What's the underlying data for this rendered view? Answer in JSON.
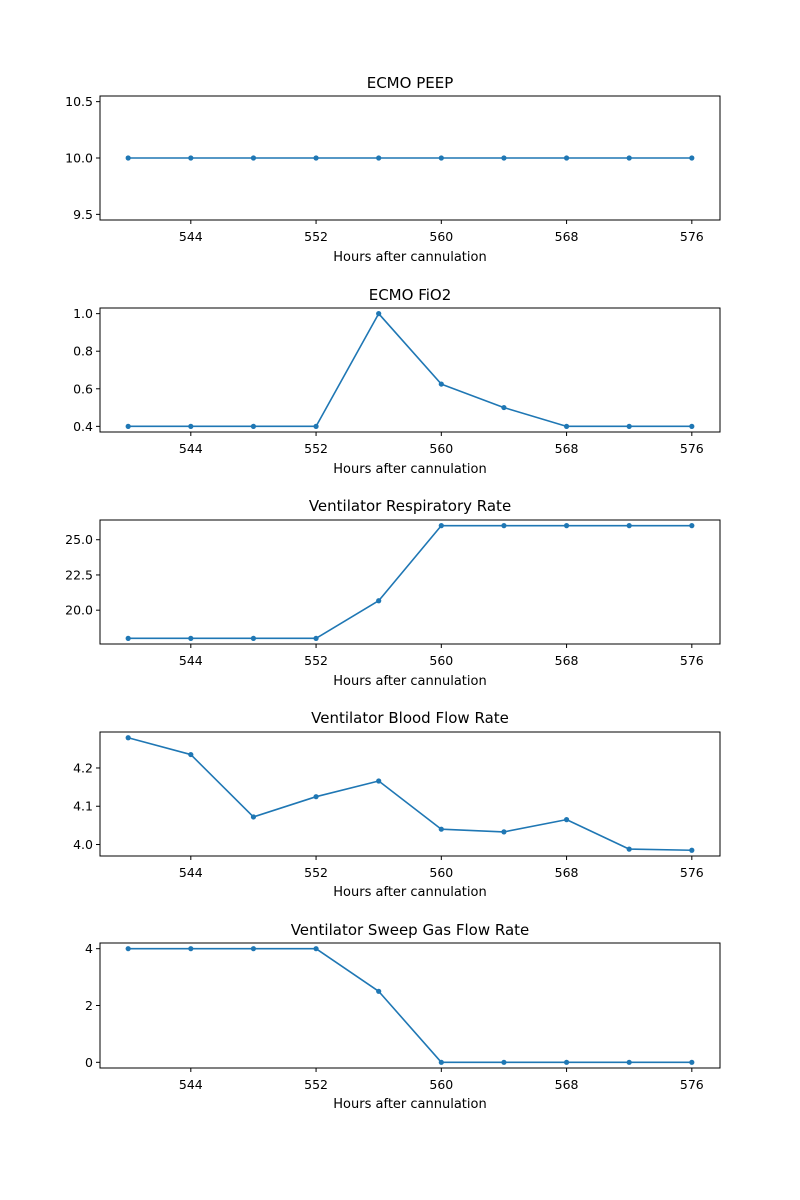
{
  "colors": {
    "line": "#1f77b4",
    "axes": "#000000",
    "background": "#ffffff"
  },
  "chart_data": [
    {
      "type": "line",
      "title": "ECMO PEEP",
      "xlabel": "Hours after cannulation",
      "ylabel": "",
      "x": [
        540,
        544,
        548,
        552,
        556,
        560,
        564,
        568,
        572,
        576
      ],
      "series": [
        {
          "values": [
            10,
            10,
            10,
            10,
            10,
            10,
            10,
            10,
            10,
            10
          ]
        }
      ],
      "xlim": [
        538.2,
        577.8
      ],
      "ylim": [
        9.45,
        10.55
      ],
      "xticks": [
        544,
        552,
        560,
        568,
        576
      ],
      "yticks": [
        9.5,
        10.0,
        10.5
      ],
      "ytick_labels": [
        "9.5",
        "10.0",
        "10.5"
      ],
      "grid": false,
      "markers": true
    },
    {
      "type": "line",
      "title": "ECMO FiO2",
      "xlabel": "Hours after cannulation",
      "ylabel": "",
      "x": [
        540,
        544,
        548,
        552,
        556,
        560,
        564,
        568,
        572,
        576
      ],
      "series": [
        {
          "values": [
            0.4,
            0.4,
            0.4,
            0.4,
            1.0,
            0.625,
            0.5,
            0.4,
            0.4,
            0.4
          ]
        }
      ],
      "xlim": [
        538.2,
        577.8
      ],
      "ylim": [
        0.37,
        1.03
      ],
      "xticks": [
        544,
        552,
        560,
        568,
        576
      ],
      "yticks": [
        0.4,
        0.6,
        0.8,
        1.0
      ],
      "ytick_labels": [
        "0.4",
        "0.6",
        "0.8",
        "1.0"
      ],
      "grid": false,
      "markers": true
    },
    {
      "type": "line",
      "title": "Ventilator Respiratory Rate",
      "xlabel": "Hours after cannulation",
      "ylabel": "",
      "x": [
        540,
        544,
        548,
        552,
        556,
        560,
        564,
        568,
        572,
        576
      ],
      "series": [
        {
          "values": [
            18,
            18,
            18,
            18,
            20.67,
            26,
            26,
            26,
            26,
            26
          ]
        }
      ],
      "xlim": [
        538.2,
        577.8
      ],
      "ylim": [
        17.6,
        26.4
      ],
      "xticks": [
        544,
        552,
        560,
        568,
        576
      ],
      "yticks": [
        20.0,
        22.5,
        25.0
      ],
      "ytick_labels": [
        "20.0",
        "22.5",
        "25.0"
      ],
      "grid": false,
      "markers": true
    },
    {
      "type": "line",
      "title": "Ventilator Blood Flow Rate",
      "xlabel": "Hours after cannulation",
      "ylabel": "",
      "x": [
        540,
        544,
        548,
        552,
        556,
        560,
        564,
        568,
        572,
        576
      ],
      "series": [
        {
          "values": [
            4.279,
            4.235,
            4.072,
            4.125,
            4.166,
            4.04,
            4.033,
            4.065,
            3.988,
            3.985
          ]
        }
      ],
      "xlim": [
        538.2,
        577.8
      ],
      "ylim": [
        3.97,
        4.294
      ],
      "xticks": [
        544,
        552,
        560,
        568,
        576
      ],
      "yticks": [
        4.0,
        4.1,
        4.2
      ],
      "ytick_labels": [
        "4.0",
        "4.1",
        "4.2"
      ],
      "grid": false,
      "markers": true
    },
    {
      "type": "line",
      "title": "Ventilator Sweep Gas Flow Rate",
      "xlabel": "Hours after cannulation",
      "ylabel": "",
      "x": [
        540,
        544,
        548,
        552,
        556,
        560,
        564,
        568,
        572,
        576
      ],
      "series": [
        {
          "values": [
            4,
            4,
            4,
            4,
            2.5,
            0,
            0,
            0,
            0,
            0
          ]
        }
      ],
      "xlim": [
        538.2,
        577.8
      ],
      "ylim": [
        -0.2,
        4.2
      ],
      "xticks": [
        544,
        552,
        560,
        568,
        576
      ],
      "yticks": [
        0,
        2,
        4
      ],
      "ytick_labels": [
        "0",
        "2",
        "4"
      ],
      "grid": false,
      "markers": true
    }
  ]
}
